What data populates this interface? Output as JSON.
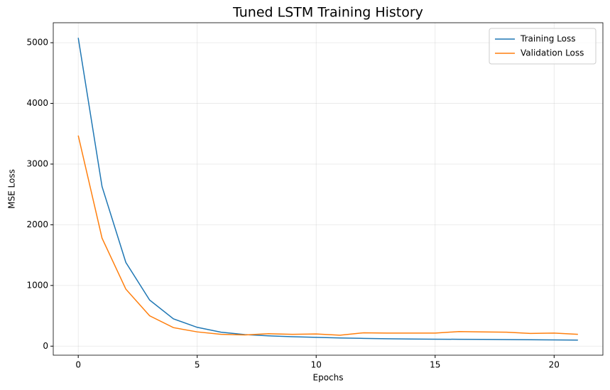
{
  "chart_data": {
    "type": "line",
    "title": "Tuned LSTM Training History",
    "x_label": "Epochs",
    "y_label": "MSE Loss",
    "x": [
      0,
      1,
      2,
      3,
      4,
      5,
      6,
      7,
      8,
      9,
      10,
      11,
      12,
      13,
      14,
      15,
      16,
      17,
      18,
      19,
      20,
      21
    ],
    "series": [
      {
        "name": "Training Loss",
        "color": "#1f77b4",
        "values": [
          5080,
          2630,
          1380,
          760,
          450,
          310,
          230,
          190,
          170,
          155,
          145,
          135,
          128,
          122,
          118,
          115,
          113,
          112,
          108,
          106,
          103,
          100
        ]
      },
      {
        "name": "Validation Loss",
        "color": "#ff7f0e",
        "values": [
          3470,
          1780,
          940,
          500,
          305,
          235,
          195,
          185,
          205,
          195,
          200,
          180,
          220,
          215,
          215,
          215,
          240,
          235,
          230,
          210,
          215,
          195
        ]
      }
    ],
    "xlim": [
      -1.05,
      22.05
    ],
    "ylim": [
      -149,
      5329
    ],
    "xticks": [
      0,
      5,
      10,
      15,
      20
    ],
    "yticks": [
      0,
      1000,
      2000,
      3000,
      4000,
      5000
    ],
    "grid": true,
    "legend": "upper right"
  }
}
